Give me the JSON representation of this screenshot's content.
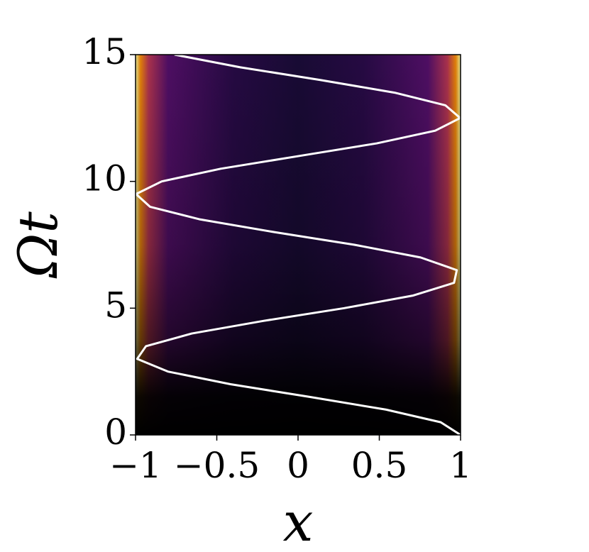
{
  "chart_data": {
    "type": "contour",
    "xlabel": "x",
    "ylabel": "Ωt",
    "xlim": [
      -1,
      1
    ],
    "ylim": [
      0,
      15
    ],
    "xticks": [
      {
        "value": -1,
        "label": "−1"
      },
      {
        "value": -0.5,
        "label": "−0.5"
      },
      0,
      0.5,
      1
    ],
    "yticks": [
      0,
      5,
      10,
      15
    ],
    "curve": {
      "color": "#ffffff",
      "y": [
        0,
        0.5,
        1,
        1.5,
        2,
        2.5,
        3,
        3.5,
        4,
        4.5,
        5,
        5.5,
        6,
        6.5,
        7,
        7.5,
        8,
        8.5,
        9,
        9.5,
        10,
        10.5,
        11,
        11.5,
        12,
        12.5,
        13,
        13.5,
        14,
        14.5,
        15
      ],
      "x": [
        1,
        0.878,
        0.54,
        0.071,
        -0.416,
        -0.801,
        -0.99,
        -0.936,
        -0.654,
        -0.211,
        0.284,
        0.709,
        0.96,
        0.977,
        0.754,
        0.347,
        -0.146,
        -0.602,
        -0.911,
        -0.997,
        -0.839,
        -0.476,
        0.004,
        0.484,
        0.844,
        0.998,
        0.907,
        0.594,
        0.137,
        -0.355,
        -0.76
      ]
    }
  }
}
